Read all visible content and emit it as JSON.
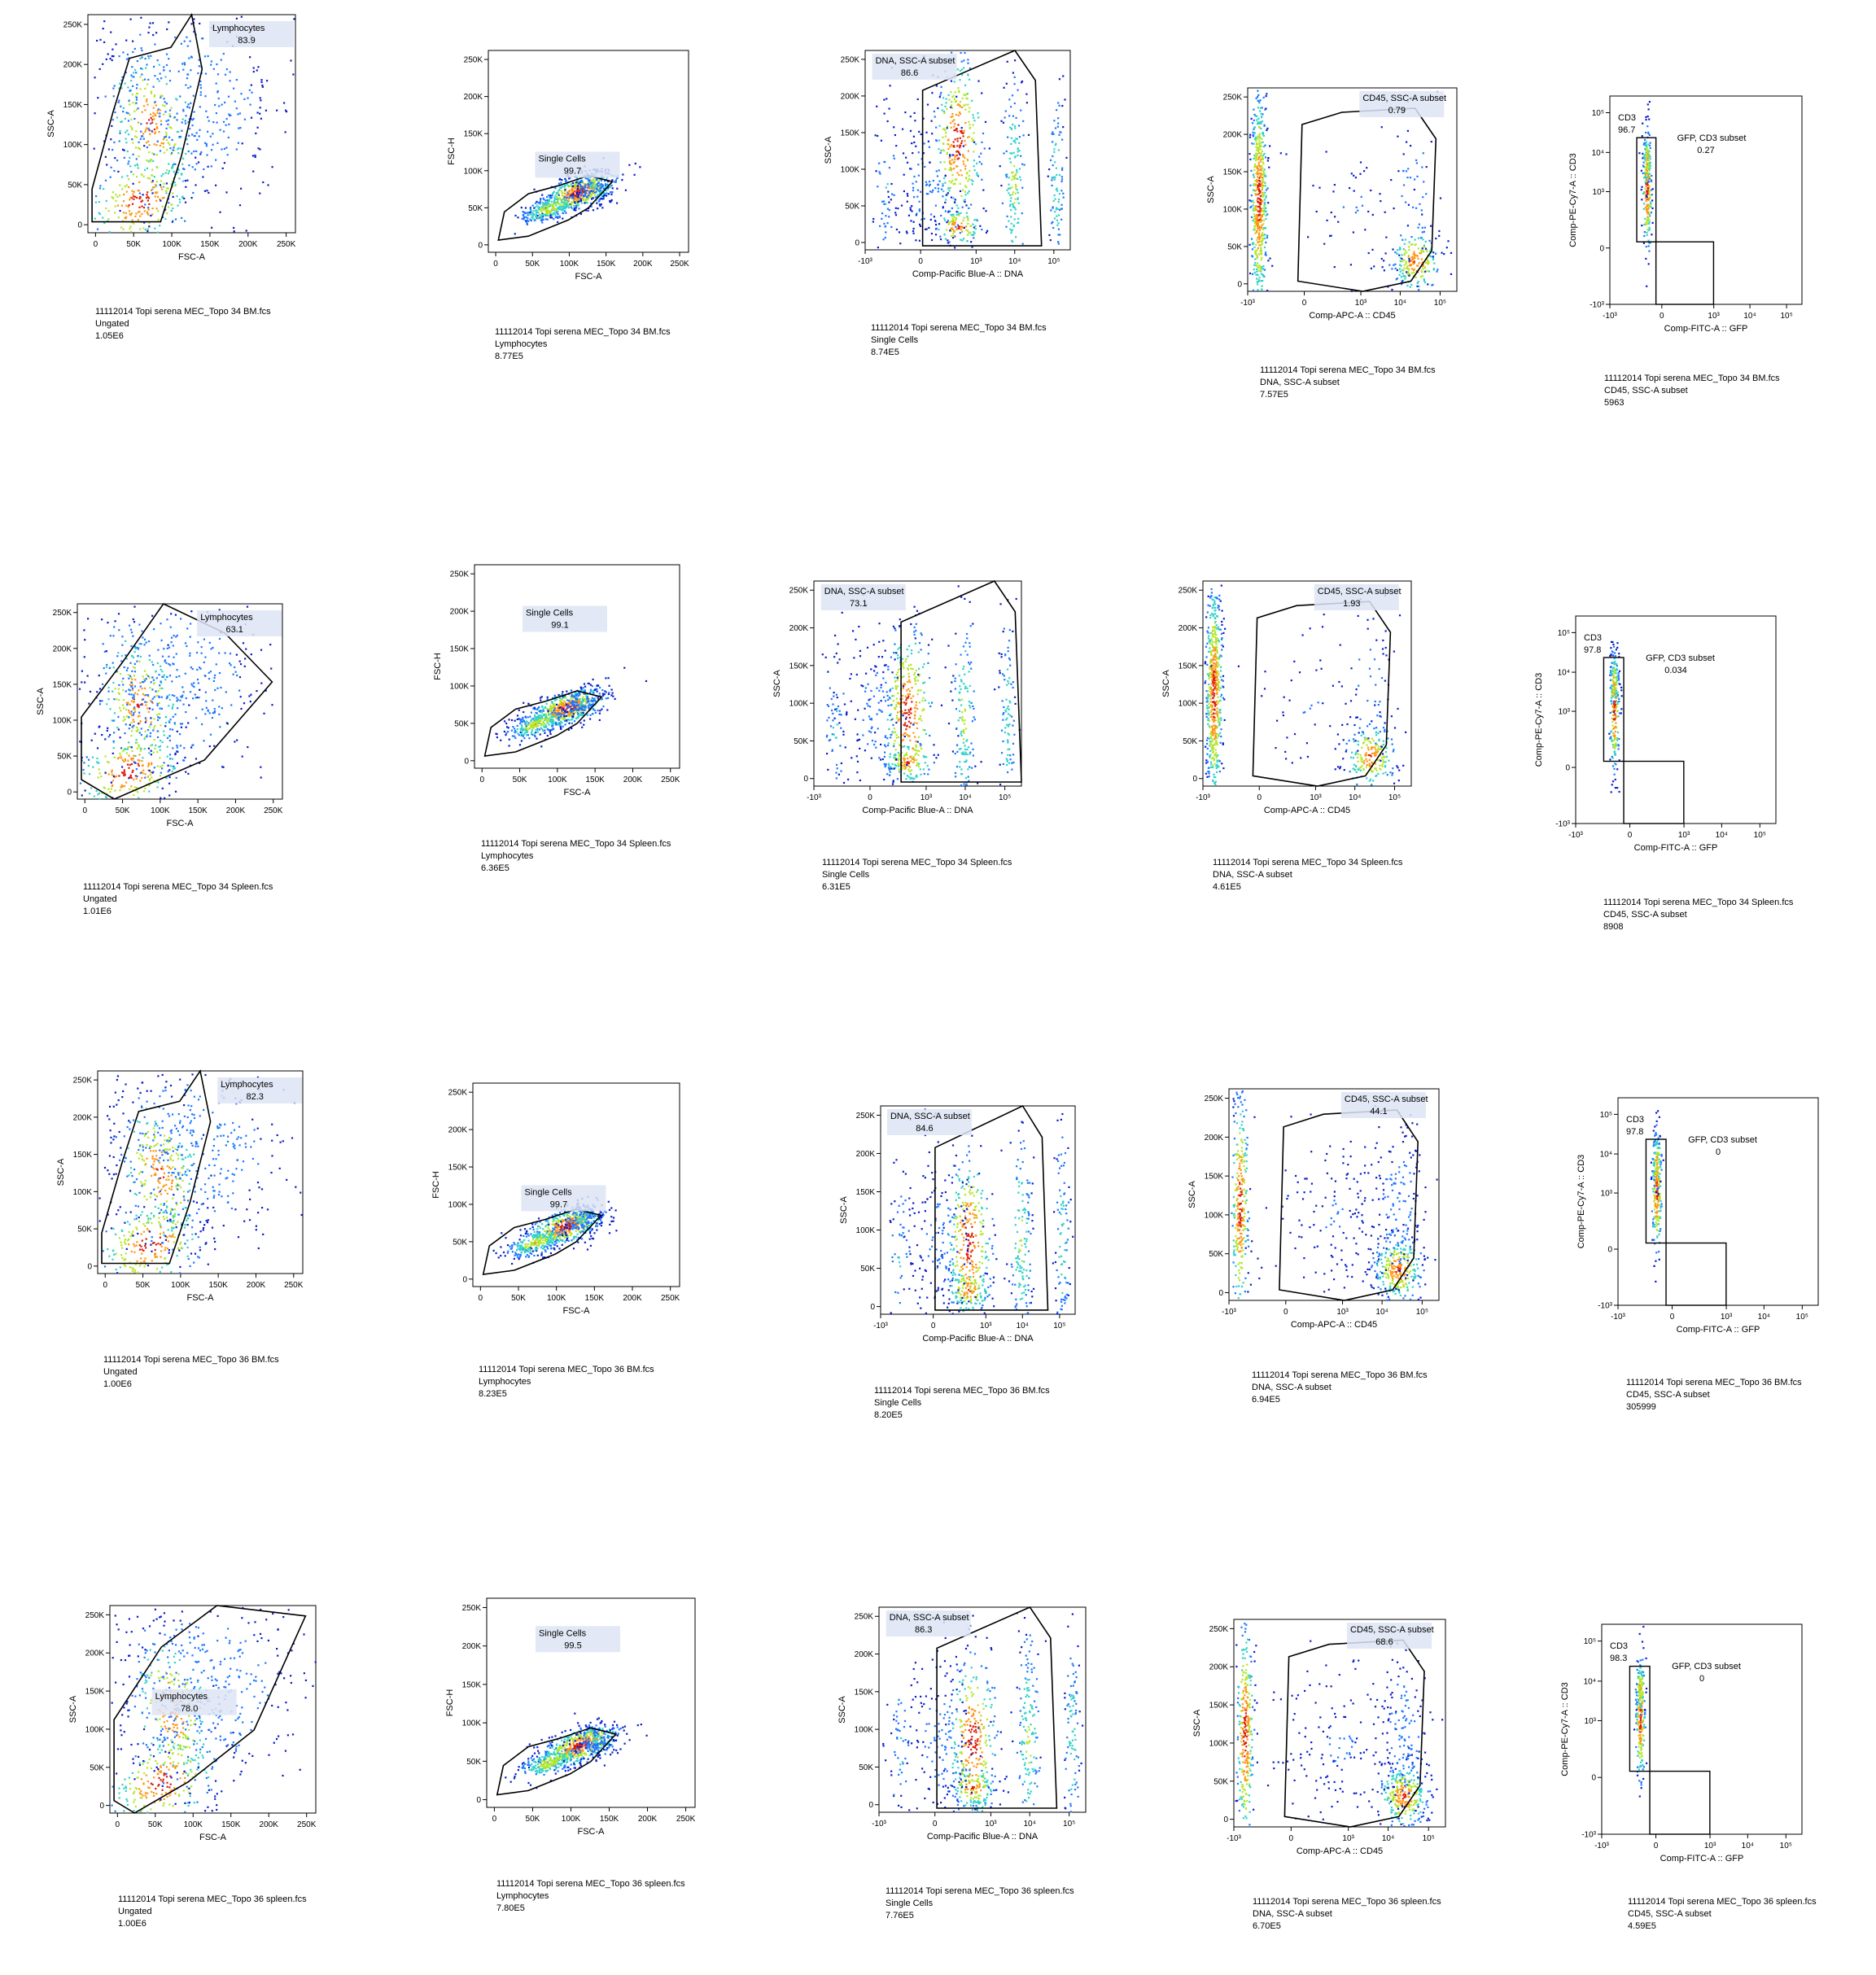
{
  "chart_data": [
    {
      "type": "scatter",
      "row": 0,
      "col": 0,
      "xlabel": "FSC-A",
      "ylabel": "SSC-A",
      "xscale": "linear",
      "yscale": "linear",
      "xlim": [
        -10000,
        262144
      ],
      "ylim": [
        -10000,
        262144
      ],
      "x_ticks": [
        "0",
        "50K",
        "100K",
        "150K",
        "200K",
        "250K"
      ],
      "y_ticks": [
        "0",
        "50K",
        "100K",
        "150K",
        "200K",
        "250K"
      ],
      "gate": {
        "name": "Lymphocytes",
        "percent": "83.9"
      },
      "caption": [
        "11112014 Topi serena MEC_Topo 34 BM.fcs",
        "Ungated",
        "1.05E6"
      ]
    },
    {
      "type": "scatter",
      "row": 0,
      "col": 1,
      "xlabel": "FSC-A",
      "ylabel": "FSC-H",
      "xscale": "linear",
      "yscale": "linear",
      "xlim": [
        -10000,
        262144
      ],
      "ylim": [
        -10000,
        262144
      ],
      "x_ticks": [
        "0",
        "50K",
        "100K",
        "150K",
        "200K",
        "250K"
      ],
      "y_ticks": [
        "0",
        "50K",
        "100K",
        "150K",
        "200K",
        "250K"
      ],
      "gate": {
        "name": "Single Cells",
        "percent": "99.7"
      },
      "caption": [
        "11112014 Topi serena MEC_Topo 34 BM.fcs",
        "Lymphocytes",
        "8.77E5"
      ]
    },
    {
      "type": "scatter",
      "row": 0,
      "col": 2,
      "xlabel": "Comp-Pacific Blue-A :: DNA",
      "ylabel": "SSC-A",
      "xscale": "biexponential",
      "yscale": "linear",
      "ylim": [
        -10000,
        262144
      ],
      "x_ticks": [
        "-10³",
        "0",
        "10³",
        "10⁴",
        "10⁵"
      ],
      "y_ticks": [
        "0",
        "50K",
        "100K",
        "150K",
        "200K",
        "250K"
      ],
      "gate": {
        "name": "DNA, SSC-A subset",
        "percent": "86.6"
      },
      "caption": [
        "11112014 Topi serena MEC_Topo 34 BM.fcs",
        "Single Cells",
        "8.74E5"
      ]
    },
    {
      "type": "scatter",
      "row": 0,
      "col": 3,
      "xlabel": "Comp-APC-A :: CD45",
      "ylabel": "SSC-A",
      "xscale": "biexponential",
      "yscale": "linear",
      "ylim": [
        -10000,
        262144
      ],
      "x_ticks": [
        "-10³",
        "0",
        "10³",
        "10⁴",
        "10⁵"
      ],
      "y_ticks": [
        "0",
        "50K",
        "100K",
        "150K",
        "200K",
        "250K"
      ],
      "gate": {
        "name": "CD45, SSC-A subset",
        "percent": "0.79"
      },
      "caption": [
        "11112014 Topi serena MEC_Topo 34 BM.fcs",
        "DNA, SSC-A subset",
        "7.57E5"
      ]
    },
    {
      "type": "scatter",
      "row": 0,
      "col": 4,
      "xlabel": "Comp-FITC-A :: GFP",
      "ylabel": "Comp-PE-Cy7-A :: CD3",
      "xscale": "biexponential",
      "yscale": "biexponential",
      "x_ticks": [
        "-10³",
        "0",
        "10³",
        "10⁴",
        "10⁵"
      ],
      "y_ticks": [
        "-10³",
        "0",
        "10³",
        "10⁴",
        "10⁵"
      ],
      "gates": [
        {
          "name": "CD3",
          "percent": "96.7"
        },
        {
          "name": "GFP, CD3 subset",
          "percent": "0.27"
        }
      ],
      "caption": [
        "11112014 Topi serena MEC_Topo 34 BM.fcs",
        "CD45, SSC-A subset",
        "5963"
      ]
    },
    {
      "type": "scatter",
      "row": 1,
      "col": 0,
      "xlabel": "FSC-A",
      "ylabel": "SSC-A",
      "xscale": "linear",
      "yscale": "linear",
      "xlim": [
        -10000,
        262144
      ],
      "ylim": [
        -10000,
        262144
      ],
      "x_ticks": [
        "0",
        "50K",
        "100K",
        "150K",
        "200K",
        "250K"
      ],
      "y_ticks": [
        "0",
        "50K",
        "100K",
        "150K",
        "200K",
        "250K"
      ],
      "gate": {
        "name": "Lymphocytes",
        "percent": "63.1"
      },
      "caption": [
        "11112014 Topi serena MEC_Topo 34 Spleen.fcs",
        "Ungated",
        "1.01E6"
      ]
    },
    {
      "type": "scatter",
      "row": 1,
      "col": 1,
      "xlabel": "FSC-A",
      "ylabel": "FSC-H",
      "xscale": "linear",
      "yscale": "linear",
      "xlim": [
        -10000,
        262144
      ],
      "ylim": [
        -10000,
        262144
      ],
      "x_ticks": [
        "0",
        "50K",
        "100K",
        "150K",
        "200K",
        "250K"
      ],
      "y_ticks": [
        "0",
        "50K",
        "100K",
        "150K",
        "200K",
        "250K"
      ],
      "gate": {
        "name": "Single Cells",
        "percent": "99.1"
      },
      "caption": [
        "11112014 Topi serena MEC_Topo 34 Spleen.fcs",
        "Lymphocytes",
        "6.36E5"
      ]
    },
    {
      "type": "scatter",
      "row": 1,
      "col": 2,
      "xlabel": "Comp-Pacific Blue-A :: DNA",
      "ylabel": "SSC-A",
      "xscale": "biexponential",
      "yscale": "linear",
      "ylim": [
        -10000,
        262144
      ],
      "x_ticks": [
        "-10³",
        "0",
        "10³",
        "10⁴",
        "10⁵"
      ],
      "y_ticks": [
        "0",
        "50K",
        "100K",
        "150K",
        "200K",
        "250K"
      ],
      "gate": {
        "name": "DNA, SSC-A subset",
        "percent": "73.1"
      },
      "caption": [
        "11112014 Topi serena MEC_Topo 34 Spleen.fcs",
        "Single Cells",
        "6.31E5"
      ]
    },
    {
      "type": "scatter",
      "row": 1,
      "col": 3,
      "xlabel": "Comp-APC-A :: CD45",
      "ylabel": "SSC-A",
      "xscale": "biexponential",
      "yscale": "linear",
      "ylim": [
        -10000,
        262144
      ],
      "x_ticks": [
        "-10³",
        "0",
        "10³",
        "10⁴",
        "10⁵"
      ],
      "y_ticks": [
        "0",
        "50K",
        "100K",
        "150K",
        "200K",
        "250K"
      ],
      "gate": {
        "name": "CD45, SSC-A subset",
        "percent": "1.93"
      },
      "caption": [
        "11112014 Topi serena MEC_Topo 34 Spleen.fcs",
        "DNA, SSC-A subset",
        "4.61E5"
      ]
    },
    {
      "type": "scatter",
      "row": 1,
      "col": 4,
      "xlabel": "Comp-FITC-A :: GFP",
      "ylabel": "Comp-PE-Cy7-A :: CD3",
      "xscale": "biexponential",
      "yscale": "biexponential",
      "x_ticks": [
        "-10³",
        "0",
        "10³",
        "10⁴",
        "10⁵"
      ],
      "y_ticks": [
        "-10³",
        "0",
        "10³",
        "10⁴",
        "10⁵"
      ],
      "gates": [
        {
          "name": "CD3",
          "percent": "97.8"
        },
        {
          "name": "GFP, CD3 subset",
          "percent": "0.034"
        }
      ],
      "caption": [
        "11112014 Topi serena MEC_Topo 34 Spleen.fcs",
        "CD45, SSC-A subset",
        "8908"
      ]
    },
    {
      "type": "scatter",
      "row": 2,
      "col": 0,
      "xlabel": "FSC-A",
      "ylabel": "SSC-A",
      "xscale": "linear",
      "yscale": "linear",
      "xlim": [
        -10000,
        262144
      ],
      "ylim": [
        -10000,
        262144
      ],
      "x_ticks": [
        "0",
        "50K",
        "100K",
        "150K",
        "200K",
        "250K"
      ],
      "y_ticks": [
        "0",
        "50K",
        "100K",
        "150K",
        "200K",
        "250K"
      ],
      "gate": {
        "name": "Lymphocytes",
        "percent": "82.3"
      },
      "caption": [
        "11112014 Topi serena MEC_Topo 36 BM.fcs",
        "Ungated",
        "1.00E6"
      ]
    },
    {
      "type": "scatter",
      "row": 2,
      "col": 1,
      "xlabel": "FSC-A",
      "ylabel": "FSC-H",
      "xscale": "linear",
      "yscale": "linear",
      "xlim": [
        -10000,
        262144
      ],
      "ylim": [
        -10000,
        262144
      ],
      "x_ticks": [
        "0",
        "50K",
        "100K",
        "150K",
        "200K",
        "250K"
      ],
      "y_ticks": [
        "0",
        "50K",
        "100K",
        "150K",
        "200K",
        "250K"
      ],
      "gate": {
        "name": "Single Cells",
        "percent": "99.7"
      },
      "caption": [
        "11112014 Topi serena MEC_Topo 36 BM.fcs",
        "Lymphocytes",
        "8.23E5"
      ]
    },
    {
      "type": "scatter",
      "row": 2,
      "col": 2,
      "xlabel": "Comp-Pacific Blue-A :: DNA",
      "ylabel": "SSC-A",
      "xscale": "biexponential",
      "yscale": "linear",
      "ylim": [
        -10000,
        262144
      ],
      "x_ticks": [
        "-10³",
        "0",
        "10³",
        "10⁴",
        "10⁵"
      ],
      "y_ticks": [
        "0",
        "50K",
        "100K",
        "150K",
        "200K",
        "250K"
      ],
      "gate": {
        "name": "DNA, SSC-A subset",
        "percent": "84.6"
      },
      "caption": [
        "11112014 Topi serena MEC_Topo 36 BM.fcs",
        "Single Cells",
        "8.20E5"
      ]
    },
    {
      "type": "scatter",
      "row": 2,
      "col": 3,
      "xlabel": "Comp-APC-A :: CD45",
      "ylabel": "SSC-A",
      "xscale": "biexponential",
      "yscale": "linear",
      "ylim": [
        -10000,
        262144
      ],
      "x_ticks": [
        "-10³",
        "0",
        "10³",
        "10⁴",
        "10⁵"
      ],
      "y_ticks": [
        "0",
        "50K",
        "100K",
        "150K",
        "200K",
        "250K"
      ],
      "gate": {
        "name": "CD45, SSC-A subset",
        "percent": "44.1"
      },
      "caption": [
        "11112014 Topi serena MEC_Topo 36 BM.fcs",
        "DNA, SSC-A subset",
        "6.94E5"
      ]
    },
    {
      "type": "scatter",
      "row": 2,
      "col": 4,
      "xlabel": "Comp-FITC-A :: GFP",
      "ylabel": "Comp-PE-Cy7-A :: CD3",
      "xscale": "biexponential",
      "yscale": "biexponential",
      "x_ticks": [
        "-10³",
        "0",
        "10³",
        "10⁴",
        "10⁵"
      ],
      "y_ticks": [
        "-10³",
        "0",
        "10³",
        "10⁴",
        "10⁵"
      ],
      "gates": [
        {
          "name": "CD3",
          "percent": "97.8"
        },
        {
          "name": "GFP, CD3 subset",
          "percent": "0"
        }
      ],
      "caption": [
        "11112014 Topi serena MEC_Topo 36 BM.fcs",
        "CD45, SSC-A subset",
        "305999"
      ]
    },
    {
      "type": "scatter",
      "row": 3,
      "col": 0,
      "xlabel": "FSC-A",
      "ylabel": "SSC-A",
      "xscale": "linear",
      "yscale": "linear",
      "xlim": [
        -10000,
        262144
      ],
      "ylim": [
        -10000,
        262144
      ],
      "x_ticks": [
        "0",
        "50K",
        "100K",
        "150K",
        "200K",
        "250K"
      ],
      "y_ticks": [
        "0",
        "50K",
        "100K",
        "150K",
        "200K",
        "250K"
      ],
      "gate": {
        "name": "Lymphocytes",
        "percent": "78.0"
      },
      "caption": [
        "11112014 Topi serena MEC_Topo 36 spleen.fcs",
        "Ungated",
        "1.00E6"
      ]
    },
    {
      "type": "scatter",
      "row": 3,
      "col": 1,
      "xlabel": "FSC-A",
      "ylabel": "FSC-H",
      "xscale": "linear",
      "yscale": "linear",
      "xlim": [
        -10000,
        262144
      ],
      "ylim": [
        -10000,
        262144
      ],
      "x_ticks": [
        "0",
        "50K",
        "100K",
        "150K",
        "200K",
        "250K"
      ],
      "y_ticks": [
        "0",
        "50K",
        "100K",
        "150K",
        "200K",
        "250K"
      ],
      "gate": {
        "name": "Single Cells",
        "percent": "99.5"
      },
      "caption": [
        "11112014 Topi serena MEC_Topo 36 spleen.fcs",
        "Lymphocytes",
        "7.80E5"
      ]
    },
    {
      "type": "scatter",
      "row": 3,
      "col": 2,
      "xlabel": "Comp-Pacific Blue-A :: DNA",
      "ylabel": "SSC-A",
      "xscale": "biexponential",
      "yscale": "linear",
      "ylim": [
        -10000,
        262144
      ],
      "x_ticks": [
        "-10³",
        "0",
        "10³",
        "10⁴",
        "10⁵"
      ],
      "y_ticks": [
        "0",
        "50K",
        "100K",
        "150K",
        "200K",
        "250K"
      ],
      "gate": {
        "name": "DNA, SSC-A subset",
        "percent": "86.3"
      },
      "caption": [
        "11112014 Topi serena MEC_Topo 36 spleen.fcs",
        "Single Cells",
        "7.76E5"
      ]
    },
    {
      "type": "scatter",
      "row": 3,
      "col": 3,
      "xlabel": "Comp-APC-A :: CD45",
      "ylabel": "SSC-A",
      "xscale": "biexponential",
      "yscale": "linear",
      "ylim": [
        -10000,
        262144
      ],
      "x_ticks": [
        "-10³",
        "0",
        "10³",
        "10⁴",
        "10⁵"
      ],
      "y_ticks": [
        "0",
        "50K",
        "100K",
        "150K",
        "200K",
        "250K"
      ],
      "gate": {
        "name": "CD45, SSC-A subset",
        "percent": "68.6"
      },
      "caption": [
        "11112014 Topi serena MEC_Topo 36 spleen.fcs",
        "DNA, SSC-A subset",
        "6.70E5"
      ]
    },
    {
      "type": "scatter",
      "row": 3,
      "col": 4,
      "xlabel": "Comp-FITC-A :: GFP",
      "ylabel": "Comp-PE-Cy7-A :: CD3",
      "xscale": "biexponential",
      "yscale": "biexponential",
      "x_ticks": [
        "-10³",
        "0",
        "10³",
        "10⁴",
        "10⁵"
      ],
      "y_ticks": [
        "-10³",
        "0",
        "10³",
        "10⁴",
        "10⁵"
      ],
      "gates": [
        {
          "name": "CD3",
          "percent": "98.3"
        },
        {
          "name": "GFP, CD3 subset",
          "percent": "0"
        }
      ],
      "caption": [
        "11112014 Topi serena MEC_Topo 36 spleen.fcs",
        "CD45, SSC-A subset",
        "4.59E5"
      ]
    }
  ],
  "colors": {
    "density_low": "#0a1ec8",
    "density_mid_low": "#1e78ff",
    "density_mid": "#32d2c8",
    "density_mid_high": "#b4e628",
    "density_high": "#ff9614",
    "density_peak": "#dc1e0a",
    "gate_line": "#000000",
    "gate_label_bg": "#dde4f3",
    "frame": "#000000"
  }
}
